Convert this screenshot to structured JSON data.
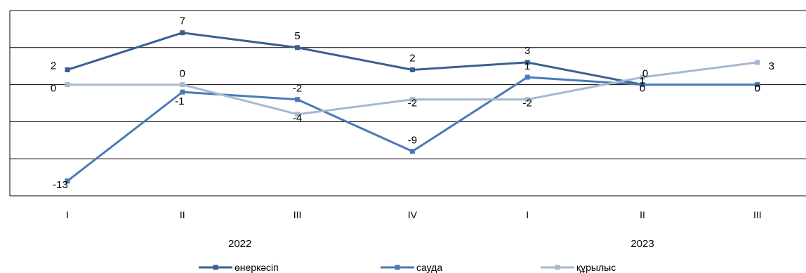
{
  "chart_data": {
    "type": "line",
    "categories": [
      "I",
      "II",
      "III",
      "IV",
      "I",
      "II",
      "III"
    ],
    "year_groups": [
      {
        "label": "2022",
        "start": 0,
        "end": 3
      },
      {
        "label": "2023",
        "start": 4,
        "end": 6
      }
    ],
    "ylim": [
      -15,
      10
    ],
    "grid_step": 5,
    "grid": true,
    "legend_position": "bottom",
    "series": [
      {
        "name": "өнеркәсіп",
        "color": "#3a5f8f",
        "values": [
          2,
          7,
          5,
          2,
          3,
          0,
          0
        ],
        "labels": [
          "2",
          "7",
          "5",
          "2",
          "3",
          "0",
          "0"
        ]
      },
      {
        "name": "сауда",
        "color": "#4a7ab8",
        "values": [
          -13,
          -1,
          -2,
          -9,
          1,
          0,
          0
        ],
        "labels": [
          "-13",
          "-1",
          "-2",
          "-9",
          "1",
          "0",
          "0"
        ]
      },
      {
        "name": "құрылыс",
        "color": "#a7b7d0",
        "values": [
          0,
          0,
          -4,
          -2,
          -2,
          1,
          3
        ],
        "labels": [
          "0",
          "0",
          "-4",
          "-2",
          "-2",
          "1",
          "3"
        ]
      }
    ]
  }
}
